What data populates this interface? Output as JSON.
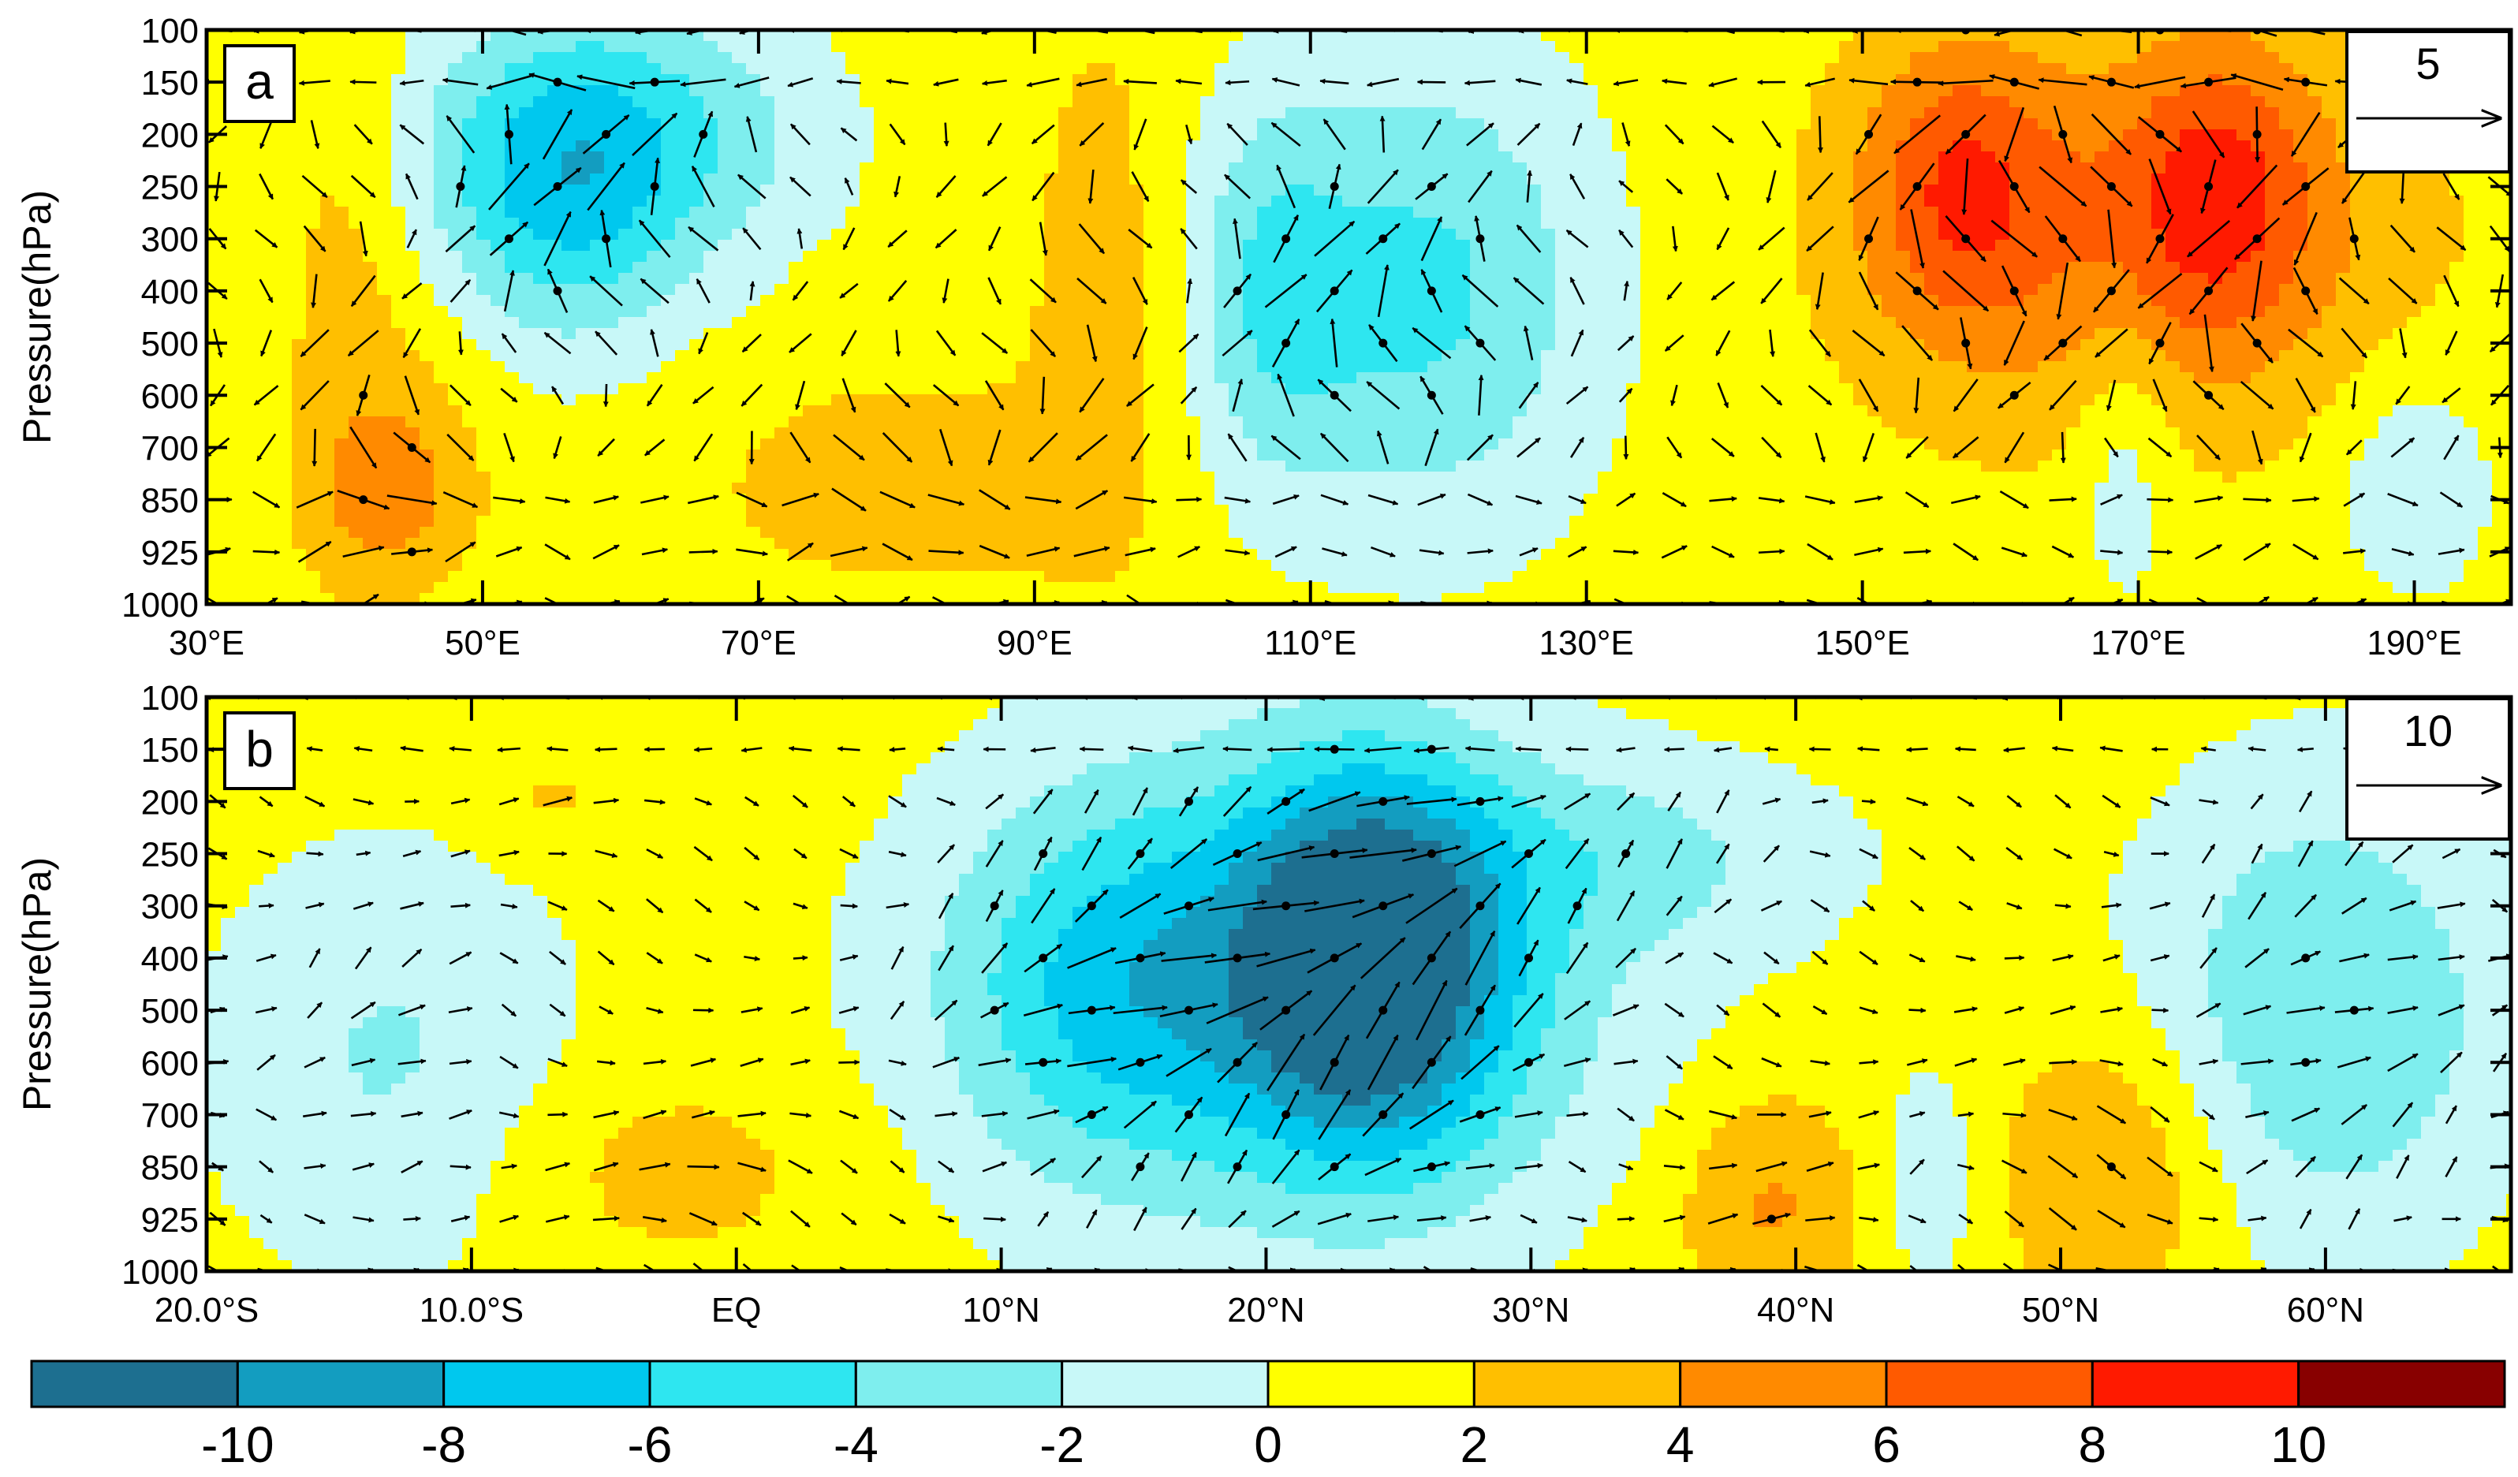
{
  "chart_data": [
    {
      "type": "heatmap",
      "panel_label": "a",
      "ylabel": "Pressure(hPa)",
      "x_tick_labels": [
        "30°E",
        "50°E",
        "70°E",
        "90°E",
        "110°E",
        "130°E",
        "150°E",
        "170°E",
        "190°E"
      ],
      "x_ticks": [
        30,
        50,
        70,
        90,
        110,
        130,
        150,
        170,
        190
      ],
      "xlim": [
        30,
        197
      ],
      "y_tick_labels": [
        "100",
        "150",
        "200",
        "250",
        "300",
        "400",
        "500",
        "600",
        "700",
        "850",
        "925",
        "1000"
      ],
      "y_levels": [
        100,
        150,
        200,
        250,
        300,
        400,
        500,
        600,
        700,
        850,
        925,
        1000
      ],
      "reference_vector": {
        "label": "5",
        "magnitude": 5
      },
      "field_blobs": [
        {
          "x": 55,
          "y": 250,
          "sx": 7,
          "sy": 2.2,
          "value": -5.5
        },
        {
          "x": 63,
          "y": 200,
          "sx": 9,
          "sy": 1.8,
          "value": -3
        },
        {
          "x": 45,
          "y": 550,
          "sx": 5,
          "sy": 2.0,
          "value": 2.5
        },
        {
          "x": 43,
          "y": 850,
          "sx": 4,
          "sy": 1.2,
          "value": 4.5
        },
        {
          "x": 40,
          "y": 300,
          "sx": 3,
          "sy": 3.5,
          "value": 2.5
        },
        {
          "x": 95,
          "y": 400,
          "sx": 4,
          "sy": 4.0,
          "value": 3
        },
        {
          "x": 80,
          "y": 800,
          "sx": 10,
          "sy": 1.5,
          "value": 3
        },
        {
          "x": 118,
          "y": 400,
          "sx": 9,
          "sy": 3.2,
          "value": -4.5
        },
        {
          "x": 107,
          "y": 400,
          "sx": 4,
          "sy": 2.5,
          "value": -2.5
        },
        {
          "x": 170,
          "y": 300,
          "sx": 14,
          "sy": 2.8,
          "value": 5
        },
        {
          "x": 157,
          "y": 250,
          "sx": 5,
          "sy": 2.0,
          "value": 6.3
        },
        {
          "x": 176,
          "y": 250,
          "sx": 5,
          "sy": 2.0,
          "value": 6.1
        },
        {
          "x": 190,
          "y": 800,
          "sx": 4,
          "sy": 1.5,
          "value": -2
        },
        {
          "x": 169,
          "y": 750,
          "sx": 2.5,
          "sy": 2.0,
          "value": -1.5
        }
      ]
    },
    {
      "type": "heatmap",
      "panel_label": "b",
      "ylabel": "Pressure(hPa)",
      "x_tick_labels": [
        "20.0°S",
        "10.0°S",
        "EQ",
        "10°N",
        "20°N",
        "30°N",
        "40°N",
        "50°N",
        "60°N"
      ],
      "x_ticks": [
        -20,
        -10,
        0,
        10,
        20,
        30,
        40,
        50,
        60
      ],
      "xlim": [
        -20,
        67
      ],
      "y_tick_labels": [
        "100",
        "150",
        "200",
        "250",
        "300",
        "400",
        "500",
        "600",
        "700",
        "850",
        "925",
        "1000"
      ],
      "y_levels": [
        100,
        150,
        200,
        250,
        300,
        400,
        500,
        600,
        700,
        850,
        925,
        1000
      ],
      "reference_vector": {
        "label": "10",
        "magnitude": 10
      },
      "field_blobs": [
        {
          "x": 24,
          "y": 400,
          "sx": 3.5,
          "sy": 2.6,
          "value": -10
        },
        {
          "x": 21,
          "y": 450,
          "sx": 9,
          "sy": 3.3,
          "value": -5
        },
        {
          "x": 14,
          "y": 450,
          "sx": 4,
          "sy": 2.5,
          "value": -3
        },
        {
          "x": 60,
          "y": 500,
          "sx": 5,
          "sy": 3.2,
          "value": -4
        },
        {
          "x": 34,
          "y": 250,
          "sx": 6,
          "sy": 1.3,
          "value": -1.5
        },
        {
          "x": -13,
          "y": 600,
          "sx": 5,
          "sy": 3.0,
          "value": -2.2
        },
        {
          "x": -3,
          "y": 850,
          "sx": 5,
          "sy": 1.4,
          "value": 3
        },
        {
          "x": 39,
          "y": 900,
          "sx": 2.5,
          "sy": 1.6,
          "value": 4.5
        },
        {
          "x": 52,
          "y": 850,
          "sx": 3,
          "sy": 2.0,
          "value": 4.5
        },
        {
          "x": -7,
          "y": 200,
          "sx": 2,
          "sy": 0.7,
          "value": 2.5
        },
        {
          "x": 45,
          "y": 870,
          "sx": 1.5,
          "sy": 1.5,
          "value": -1.5
        }
      ]
    }
  ],
  "colorbar": {
    "tick_labels": [
      "-10",
      "-8",
      "-6",
      "-4",
      "-2",
      "0",
      "2",
      "4",
      "6",
      "8",
      "10"
    ],
    "bounds": [
      -12,
      -10,
      -8,
      -6,
      -4,
      -2,
      0,
      2,
      4,
      6,
      8,
      10,
      12
    ],
    "colors": [
      "#1d6f90",
      "#139dc0",
      "#00c8ee",
      "#2ee6f0",
      "#7eeeee",
      "#c8f8f8",
      "#ffff00",
      "#ffbf00",
      "#ff8a00",
      "#ff5a00",
      "#ff1a00",
      "#880000"
    ]
  }
}
